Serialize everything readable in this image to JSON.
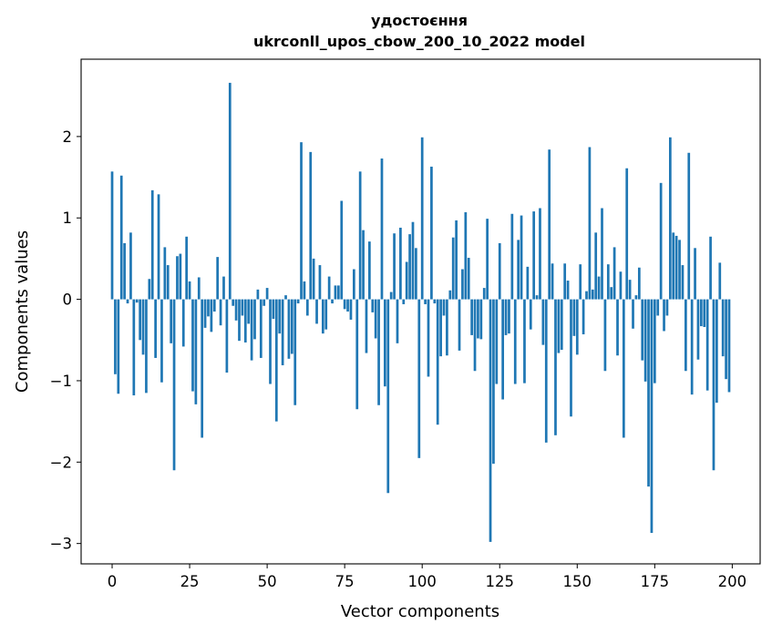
{
  "chart_data": {
    "type": "bar",
    "title": "удостоєння",
    "subtitle": "ukrconll_upos_cbow_200_10_2022 model",
    "xlabel": "Vector components",
    "ylabel": "Components values",
    "xlim": [
      -10,
      209
    ],
    "ylim": [
      -3.25,
      2.95
    ],
    "xticks": [
      0,
      25,
      50,
      75,
      100,
      125,
      150,
      175,
      200
    ],
    "yticks": [
      -3,
      -2,
      -1,
      0,
      1,
      2
    ],
    "ytick_labels": [
      "−3",
      "−2",
      "−1",
      "0",
      "1",
      "2"
    ],
    "bar_color": "#1f77b4",
    "grid": false,
    "values": [
      1.57,
      -0.92,
      -1.16,
      1.52,
      0.69,
      -0.05,
      0.82,
      -1.18,
      -0.04,
      -0.5,
      -0.68,
      -1.15,
      0.25,
      1.34,
      -0.72,
      1.29,
      -1.02,
      0.64,
      0.42,
      -0.54,
      -2.1,
      0.53,
      0.56,
      -0.58,
      0.77,
      0.22,
      -1.13,
      -1.29,
      0.27,
      -1.7,
      -0.35,
      -0.21,
      -0.4,
      -0.15,
      0.52,
      -0.32,
      0.28,
      -0.9,
      2.66,
      -0.08,
      -0.26,
      -0.51,
      -0.2,
      -0.53,
      -0.3,
      -0.75,
      -0.49,
      0.12,
      -0.72,
      -0.08,
      0.14,
      -1.04,
      -0.24,
      -1.5,
      -0.42,
      -0.81,
      0.05,
      -0.73,
      -0.67,
      -1.3,
      -0.05,
      1.93,
      0.22,
      -0.2,
      1.81,
      0.5,
      -0.3,
      0.42,
      -0.42,
      -0.37,
      0.28,
      -0.05,
      0.17,
      0.17,
      1.21,
      -0.12,
      -0.15,
      -0.25,
      0.37,
      -1.35,
      1.57,
      0.85,
      -0.66,
      0.71,
      -0.16,
      -0.48,
      -1.3,
      1.73,
      -1.07,
      -2.38,
      0.09,
      0.81,
      -0.54,
      0.88,
      -0.06,
      0.46,
      0.8,
      0.95,
      0.63,
      -1.95,
      1.99,
      -0.06,
      -0.95,
      1.63,
      -0.05,
      -1.54,
      -0.7,
      -0.2,
      -0.69,
      0.11,
      0.76,
      0.97,
      -0.63,
      0.37,
      1.07,
      0.51,
      -0.44,
      -0.88,
      -0.48,
      -0.49,
      0.14,
      0.99,
      -2.98,
      -2.02,
      -1.04,
      0.69,
      -1.23,
      -0.44,
      -0.42,
      1.05,
      -1.04,
      0.73,
      1.03,
      -1.03,
      0.4,
      -0.37,
      1.08,
      0.05,
      1.12,
      -0.56,
      -1.76,
      1.84,
      0.44,
      -1.67,
      -0.66,
      -0.62,
      0.44,
      0.23,
      -1.44,
      -0.45,
      -0.68,
      0.43,
      -0.43,
      0.1,
      1.87,
      0.12,
      0.82,
      0.28,
      1.12,
      -0.88,
      0.43,
      0.15,
      0.64,
      -0.69,
      0.34,
      -1.7,
      1.61,
      0.24,
      -0.36,
      0.05,
      0.39,
      -0.75,
      -1.01,
      -2.3,
      -2.87,
      -1.03,
      -0.2,
      1.43,
      -0.39,
      -0.2,
      1.99,
      0.82,
      0.78,
      0.73,
      0.42,
      -0.88,
      1.8,
      -1.17,
      0.63,
      -0.74,
      -0.33,
      -0.34,
      -1.12,
      0.77,
      -2.1,
      -1.27,
      0.45,
      -0.7,
      -0.98,
      -1.14
    ]
  }
}
